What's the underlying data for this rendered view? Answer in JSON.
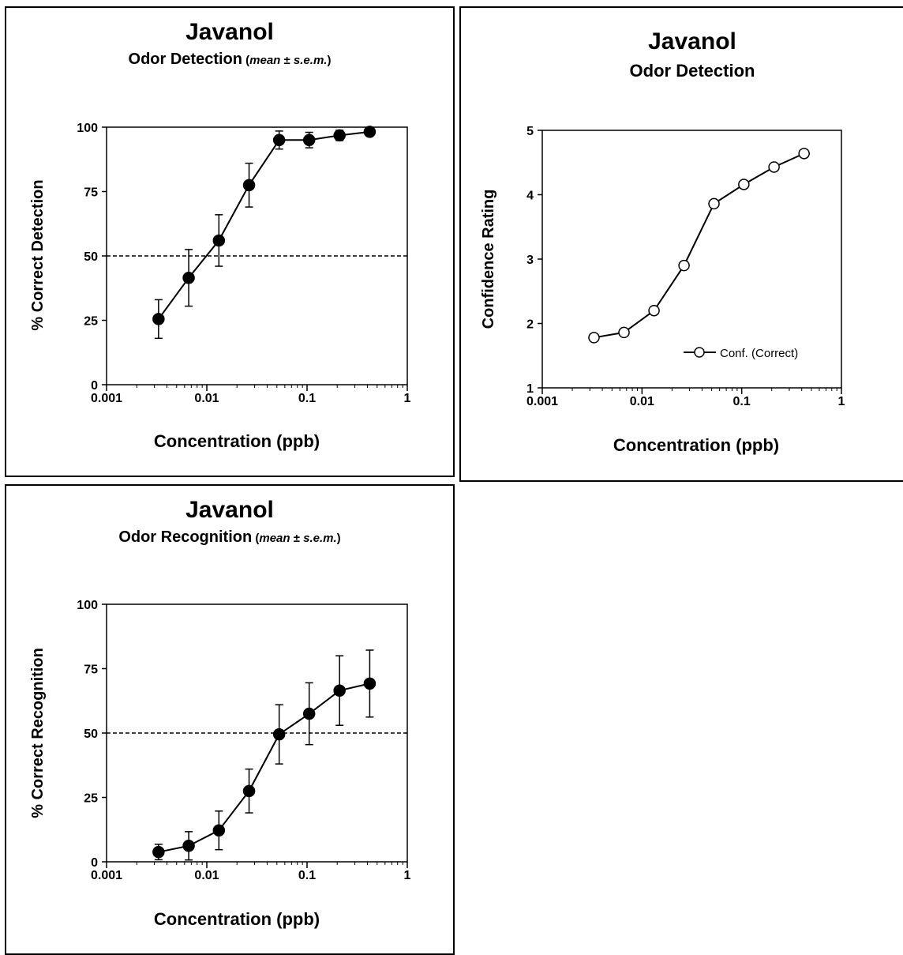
{
  "charts": {
    "detection": {
      "title": "Javanol",
      "subtitle_main": "Odor Detection",
      "subtitle_paren_open": " (",
      "subtitle_italic": "mean",
      "subtitle_pm": " ± ",
      "subtitle_italic2": "s.e.m.",
      "subtitle_paren_close": ")",
      "xlabel": "Concentration (ppb)",
      "ylabel": "% Correct Detection"
    },
    "confidence": {
      "title": "Javanol",
      "subtitle_main": "Odor Detection",
      "xlabel": "Concentration (ppb)",
      "ylabel": "Confidence Rating",
      "legend_label": "Conf. (Correct)"
    },
    "recognition": {
      "title": "Javanol",
      "subtitle_main": "Odor Recognition",
      "subtitle_paren_open": " (",
      "subtitle_italic": "mean",
      "subtitle_pm": " ± ",
      "subtitle_italic2": "s.e.m.",
      "subtitle_paren_close": ")",
      "xlabel": "Concentration (ppb)",
      "ylabel": "% Correct Recognition"
    }
  },
  "chart_data": [
    {
      "type": "line",
      "title": "Javanol",
      "subtitle": "Odor Detection (mean ± s.e.m.)",
      "xlabel": "Concentration (ppb)",
      "ylabel": "% Correct Detection",
      "xscale": "log",
      "xlim": [
        0.001,
        1
      ],
      "ylim": [
        0,
        100
      ],
      "x_ticks": [
        "0.001",
        "0.01",
        "0.1",
        "1"
      ],
      "y_ticks": [
        "0",
        "25",
        "50",
        "75",
        "100"
      ],
      "reference_line": 50,
      "marker": "filled-circle",
      "x": [
        0.0033,
        0.0066,
        0.0132,
        0.0264,
        0.0527,
        0.105,
        0.211,
        0.422
      ],
      "y": [
        25.5,
        41.5,
        56,
        77.5,
        95,
        95,
        96.8,
        98.2
      ],
      "err": [
        7.5,
        11,
        10,
        8.5,
        3.5,
        3,
        2,
        1.5
      ]
    },
    {
      "type": "line",
      "title": "Javanol",
      "subtitle": "Odor Detection",
      "xlabel": "Concentration (ppb)",
      "ylabel": "Confidence Rating",
      "xscale": "log",
      "xlim": [
        0.001,
        1
      ],
      "ylim": [
        1,
        5
      ],
      "x_ticks": [
        "0.001",
        "0.01",
        "0.1",
        "1"
      ],
      "y_ticks": [
        "1",
        "2",
        "3",
        "4",
        "5"
      ],
      "legend": "bottom-right",
      "marker": "open-circle",
      "series": [
        {
          "name": "Conf. (Correct)",
          "x": [
            0.0033,
            0.0066,
            0.0132,
            0.0264,
            0.0527,
            0.105,
            0.211,
            0.422
          ],
          "y": [
            1.78,
            1.86,
            2.2,
            2.9,
            3.86,
            4.16,
            4.43,
            4.64
          ]
        }
      ]
    },
    {
      "type": "line",
      "title": "Javanol",
      "subtitle": "Odor Recognition (mean ± s.e.m.)",
      "xlabel": "Concentration (ppb)",
      "ylabel": "% Correct Recognition",
      "xscale": "log",
      "xlim": [
        0.001,
        1
      ],
      "ylim": [
        0,
        100
      ],
      "x_ticks": [
        "0.001",
        "0.01",
        "0.1",
        "1"
      ],
      "y_ticks": [
        "0",
        "25",
        "50",
        "75",
        "100"
      ],
      "reference_line": 50,
      "marker": "filled-circle",
      "x": [
        0.0033,
        0.0066,
        0.0132,
        0.0264,
        0.0527,
        0.105,
        0.211,
        0.422
      ],
      "y": [
        3.8,
        6.2,
        12.2,
        27.5,
        49.5,
        57.5,
        66.5,
        69.2
      ],
      "err": [
        3,
        5.5,
        7.5,
        8.5,
        11.5,
        12,
        13.5,
        13
      ]
    }
  ]
}
